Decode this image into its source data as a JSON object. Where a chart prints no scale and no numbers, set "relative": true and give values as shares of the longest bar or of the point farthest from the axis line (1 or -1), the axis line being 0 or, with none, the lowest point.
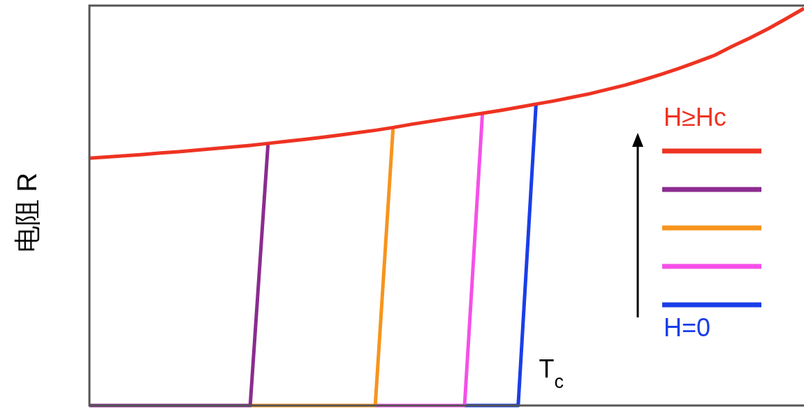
{
  "chart_data": {
    "type": "line",
    "relative": true,
    "ylabel": "电阻 R",
    "legend": "right",
    "annotations": [
      "T$_{c}$"
    ],
    "categories": [
      null,
      null,
      null,
      null,
      null,
      null,
      null,
      null,
      null,
      null,
      null,
      null,
      null,
      null,
      null,
      null,
      null,
      null,
      null,
      null,
      null,
      null,
      null,
      null,
      null,
      null,
      null,
      null,
      null,
      null,
      null,
      null,
      null,
      null,
      null,
      null,
      null,
      null,
      null,
      null,
      null
    ],
    "series": [
      {
        "name": "H≥Hc",
        "color": "#ee3322",
        "values": [
          0.623,
          0.626,
          0.629,
          0.632,
          0.636,
          0.639,
          0.643,
          0.647,
          0.651,
          0.655,
          0.66,
          0.665,
          0.67,
          0.675,
          0.681,
          0.687,
          0.693,
          0.7,
          0.708,
          0.715,
          0.722,
          0.729,
          0.736,
          0.743,
          0.751,
          0.759,
          0.767,
          0.776,
          0.785,
          0.796,
          0.807,
          0.82,
          0.834,
          0.849,
          0.865,
          0.882,
          0.905,
          0.926,
          0.949,
          0.974,
          1.0
        ]
      },
      {
        "color": "#8b2c8f",
        "values": [
          0,
          0,
          0,
          0,
          0,
          0,
          0,
          0,
          0,
          0,
          0.66,
          null,
          null,
          null,
          null,
          null,
          null,
          null,
          null,
          null,
          null,
          null,
          null,
          null,
          null,
          null,
          null,
          null,
          null,
          null,
          null,
          null,
          null,
          null,
          null,
          null,
          null,
          null,
          null,
          null,
          null
        ]
      },
      {
        "color": "#f7941d",
        "values": [
          null,
          null,
          null,
          null,
          null,
          null,
          null,
          null,
          null,
          0,
          0,
          0,
          0,
          0,
          0,
          0,
          0,
          0.7,
          null,
          null,
          null,
          null,
          null,
          null,
          null,
          null,
          null,
          null,
          null,
          null,
          null,
          null,
          null,
          null,
          null,
          null,
          null,
          null,
          null,
          null,
          null
        ]
      },
      {
        "color": "#f550e8",
        "values": [
          null,
          null,
          null,
          null,
          null,
          null,
          null,
          null,
          null,
          null,
          null,
          null,
          null,
          null,
          null,
          null,
          0,
          0,
          0,
          0,
          0,
          0,
          0.736,
          null,
          null,
          null,
          null,
          null,
          null,
          null,
          null,
          null,
          null,
          null,
          null,
          null,
          null,
          null,
          null,
          null,
          null
        ]
      },
      {
        "name": "H=0",
        "color": "#1a3ee8",
        "values": [
          null,
          null,
          null,
          null,
          null,
          null,
          null,
          null,
          null,
          null,
          null,
          null,
          null,
          null,
          null,
          null,
          null,
          null,
          null,
          null,
          null,
          0,
          0,
          0,
          0,
          0.759,
          null,
          null,
          null,
          null,
          null,
          null,
          null,
          null,
          null,
          null,
          null,
          null,
          null,
          null,
          null
        ]
      }
    ]
  }
}
